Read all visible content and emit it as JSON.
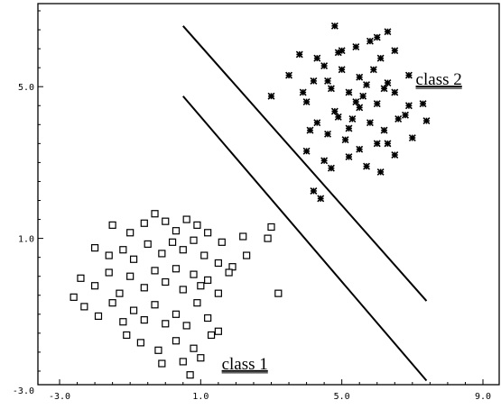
{
  "chart_data": {
    "type": "scatter",
    "title": "",
    "xlabel": "",
    "ylabel": "",
    "xlim": [
      -3.0,
      9.0
    ],
    "ylim": [
      -3.0,
      7.0
    ],
    "x_ticks": [
      -3.0,
      1.0,
      5.0,
      9.0
    ],
    "x_tick_labels": [
      "-3.0",
      "1.0",
      "5.0",
      "9.0"
    ],
    "y_ticks": [
      -3.0,
      1.0,
      5.0
    ],
    "y_tick_labels": [
      "-3.0",
      "1.0",
      "5.0"
    ],
    "grid": false,
    "annotations": [
      {
        "text": "class 1",
        "x": 2.25,
        "y": -2.45
      },
      {
        "text": "class 2",
        "x": 7.75,
        "y": 5.05
      }
    ],
    "lines": [
      {
        "x": [
          0.5,
          7.4
        ],
        "y": [
          6.6,
          -0.65
        ]
      },
      {
        "x": [
          0.5,
          7.4
        ],
        "y": [
          4.75,
          -2.75
        ]
      }
    ],
    "series": [
      {
        "marker": "open-square",
        "points": [
          [
            -1.5,
            1.35
          ],
          [
            -1.0,
            1.15
          ],
          [
            -0.6,
            1.4
          ],
          [
            -0.3,
            1.65
          ],
          [
            0.0,
            1.45
          ],
          [
            0.3,
            1.2
          ],
          [
            0.6,
            1.5
          ],
          [
            0.9,
            1.35
          ],
          [
            1.2,
            1.15
          ],
          [
            1.6,
            0.9
          ],
          [
            2.2,
            1.05
          ],
          [
            2.9,
            1.0
          ],
          [
            3.0,
            1.3
          ],
          [
            -2.0,
            0.75
          ],
          [
            -1.6,
            0.55
          ],
          [
            -1.2,
            0.7
          ],
          [
            -0.9,
            0.45
          ],
          [
            -0.5,
            0.85
          ],
          [
            -0.1,
            0.6
          ],
          [
            0.2,
            0.9
          ],
          [
            0.5,
            0.7
          ],
          [
            0.8,
            0.95
          ],
          [
            1.1,
            0.55
          ],
          [
            1.5,
            0.35
          ],
          [
            1.9,
            0.25
          ],
          [
            2.3,
            0.55
          ],
          [
            -2.4,
            -0.05
          ],
          [
            -2.0,
            -0.25
          ],
          [
            -1.6,
            0.1
          ],
          [
            -1.3,
            -0.45
          ],
          [
            -1.0,
            0.0
          ],
          [
            -0.6,
            -0.3
          ],
          [
            -0.3,
            0.15
          ],
          [
            0.0,
            -0.15
          ],
          [
            0.3,
            0.2
          ],
          [
            0.5,
            -0.35
          ],
          [
            0.8,
            0.05
          ],
          [
            1.0,
            -0.25
          ],
          [
            1.2,
            -0.1
          ],
          [
            1.5,
            -0.45
          ],
          [
            1.8,
            0.1
          ],
          [
            3.2,
            -0.45
          ],
          [
            -2.6,
            -0.55
          ],
          [
            -2.3,
            -0.8
          ],
          [
            -1.9,
            -1.05
          ],
          [
            -1.5,
            -0.7
          ],
          [
            -1.2,
            -1.2
          ],
          [
            -0.9,
            -0.9
          ],
          [
            -0.6,
            -1.15
          ],
          [
            -0.3,
            -0.75
          ],
          [
            0.0,
            -1.25
          ],
          [
            0.3,
            -1.0
          ],
          [
            0.6,
            -1.3
          ],
          [
            0.9,
            -0.7
          ],
          [
            1.2,
            -1.1
          ],
          [
            1.5,
            -1.45
          ],
          [
            -1.1,
            -1.55
          ],
          [
            -0.7,
            -1.75
          ],
          [
            -0.2,
            -1.95
          ],
          [
            0.3,
            -1.7
          ],
          [
            0.8,
            -1.9
          ],
          [
            1.3,
            -1.55
          ],
          [
            -0.1,
            -2.3
          ],
          [
            0.5,
            -2.25
          ],
          [
            1.0,
            -2.15
          ],
          [
            0.7,
            -2.6
          ]
        ]
      },
      {
        "marker": "asterisk",
        "points": [
          [
            4.8,
            6.6
          ],
          [
            6.3,
            6.45
          ],
          [
            4.9,
            5.9
          ],
          [
            5.4,
            6.05
          ],
          [
            5.8,
            6.2
          ],
          [
            6.1,
            5.75
          ],
          [
            6.5,
            5.95
          ],
          [
            3.8,
            5.85
          ],
          [
            4.5,
            5.55
          ],
          [
            5.0,
            5.45
          ],
          [
            5.5,
            5.25
          ],
          [
            5.9,
            5.45
          ],
          [
            6.3,
            5.1
          ],
          [
            6.9,
            5.3
          ],
          [
            3.5,
            5.3
          ],
          [
            4.2,
            5.15
          ],
          [
            4.7,
            4.95
          ],
          [
            5.2,
            4.85
          ],
          [
            5.6,
            4.75
          ],
          [
            6.0,
            4.55
          ],
          [
            6.5,
            4.85
          ],
          [
            7.3,
            4.55
          ],
          [
            3.0,
            4.75
          ],
          [
            4.0,
            4.6
          ],
          [
            4.8,
            4.35
          ],
          [
            5.3,
            4.15
          ],
          [
            5.8,
            4.05
          ],
          [
            6.2,
            3.85
          ],
          [
            6.8,
            4.25
          ],
          [
            7.4,
            4.1
          ],
          [
            4.3,
            4.05
          ],
          [
            4.6,
            3.75
          ],
          [
            5.1,
            3.6
          ],
          [
            5.5,
            3.35
          ],
          [
            6.0,
            3.5
          ],
          [
            6.5,
            3.2
          ],
          [
            7.0,
            3.65
          ],
          [
            4.0,
            3.3
          ],
          [
            4.5,
            3.05
          ],
          [
            5.2,
            3.15
          ],
          [
            5.7,
            2.9
          ],
          [
            6.1,
            2.75
          ],
          [
            4.2,
            2.25
          ],
          [
            4.4,
            2.05
          ],
          [
            4.9,
            4.2
          ],
          [
            5.5,
            4.45
          ],
          [
            6.2,
            4.95
          ],
          [
            4.6,
            5.15
          ],
          [
            5.0,
            5.95
          ],
          [
            5.7,
            5.05
          ],
          [
            6.6,
            4.15
          ],
          [
            3.9,
            4.85
          ],
          [
            4.3,
            5.75
          ],
          [
            6.0,
            6.3
          ],
          [
            5.2,
            3.9
          ],
          [
            4.7,
            2.85
          ],
          [
            6.9,
            4.5
          ],
          [
            5.4,
            4.6
          ],
          [
            4.1,
            3.85
          ],
          [
            6.3,
            3.5
          ]
        ]
      }
    ]
  }
}
